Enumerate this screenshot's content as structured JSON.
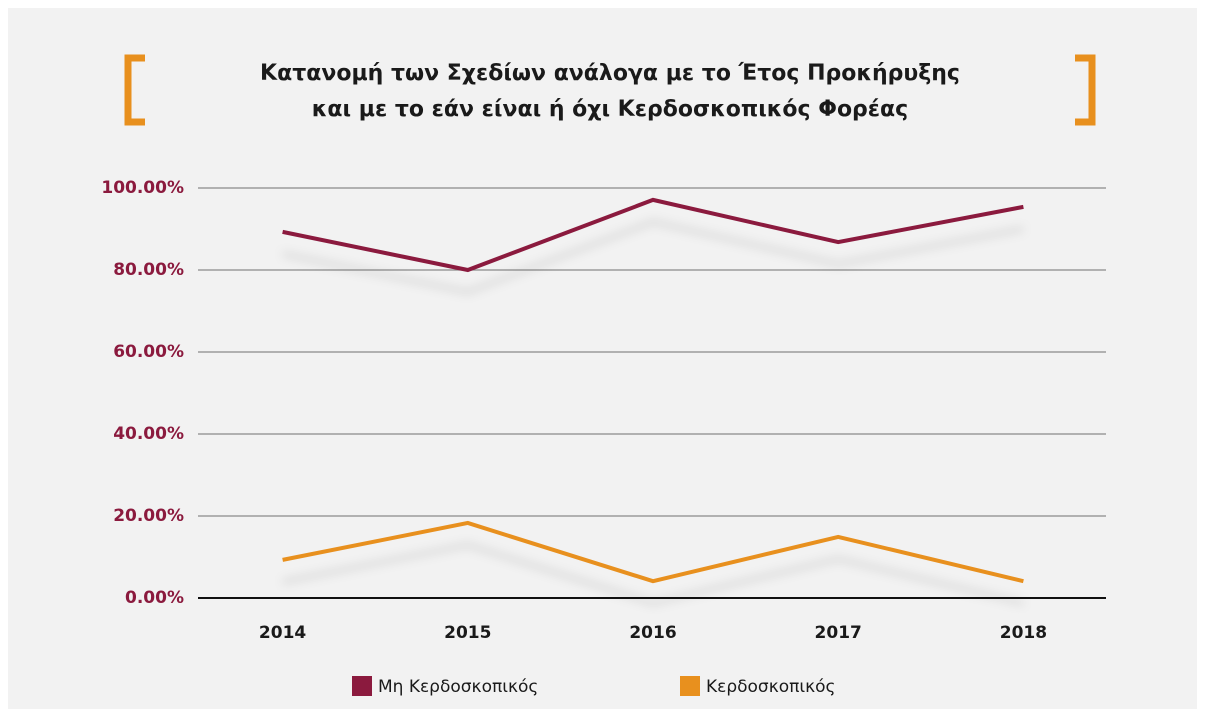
{
  "chart_data": {
    "type": "line",
    "title": [
      "Κατανομή των Σχεδίων ανάλογα με το Έτος Προκήρυξης",
      "και με το εάν είναι ή όχι Κερδοσκοπικός Φορέας"
    ],
    "categories": [
      "2014",
      "2015",
      "2016",
      "2017",
      "2018"
    ],
    "series": [
      {
        "name": "Μη Κερδοσκοπικός",
        "color": "#8b1a3e",
        "values": [
          89.3,
          80.0,
          97.1,
          86.8,
          95.4
        ]
      },
      {
        "name": "Κερδοσκοπικός",
        "color": "#e8901e",
        "values": [
          9.3,
          18.3,
          4.1,
          14.9,
          4.1
        ]
      }
    ],
    "ylim": [
      0,
      100
    ],
    "yticks": [
      {
        "value": 0,
        "label": "0.00%"
      },
      {
        "value": 20,
        "label": "20.00%"
      },
      {
        "value": 40,
        "label": "40.00%"
      },
      {
        "value": 60,
        "label": "60.00%"
      },
      {
        "value": 80,
        "label": "80.00%"
      },
      {
        "value": 100,
        "label": "100.00%"
      }
    ],
    "grid": true,
    "legend": "bottom"
  }
}
